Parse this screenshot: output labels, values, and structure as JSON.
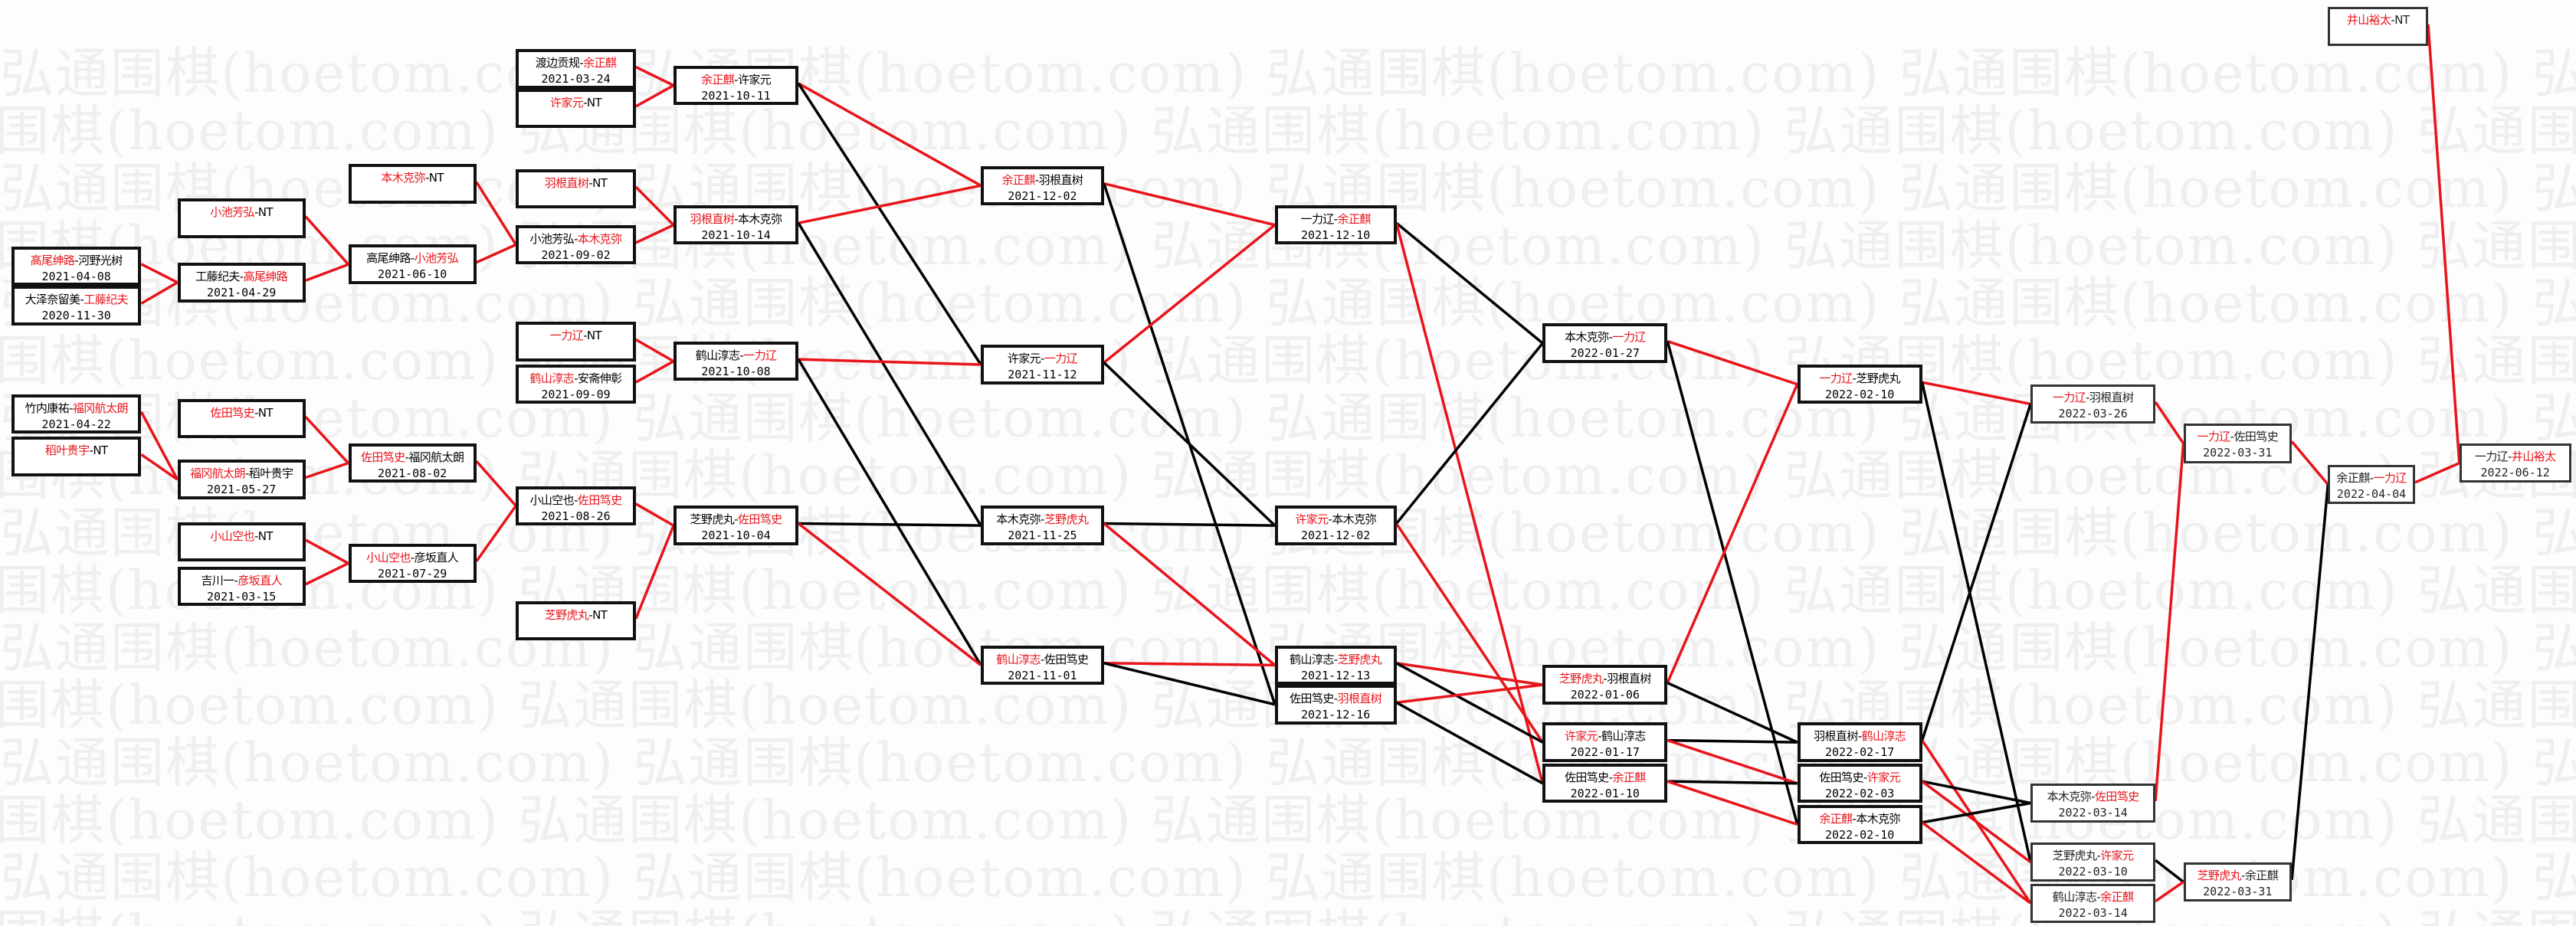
{
  "watermark": "弘通围棋(hoetom.com)",
  "colors": {
    "winner": "#e8141b",
    "loser": "#000000",
    "box_border": "#111111"
  },
  "matches": [
    {
      "id": "A1",
      "p1": "高尾绅路",
      "p2": "河野光树",
      "date": "2021-04-08",
      "winner": 1
    },
    {
      "id": "A2",
      "p1": "大泽奈留美",
      "p2": "工藤纪夫",
      "date": "2020-11-30",
      "winner": 2
    },
    {
      "id": "A3",
      "p1": "竹内康祐",
      "p2": "福冈航太朗",
      "date": "2021-04-22",
      "winner": 2
    },
    {
      "id": "A4",
      "p1": "稻叶贵宇",
      "p2": "NT",
      "date": "",
      "winner": 1
    },
    {
      "id": "B1",
      "p1": "小池芳弘",
      "p2": "NT",
      "date": "",
      "winner": 1
    },
    {
      "id": "B2",
      "p1": "工藤纪夫",
      "p2": "高尾绅路",
      "date": "2021-04-29",
      "winner": 2
    },
    {
      "id": "B3",
      "p1": "佐田笃史",
      "p2": "NT",
      "date": "",
      "winner": 1
    },
    {
      "id": "B4",
      "p1": "福冈航太朗",
      "p2": "稻叶贵宇",
      "date": "2021-05-27",
      "winner": 1
    },
    {
      "id": "B5",
      "p1": "小山空也",
      "p2": "NT",
      "date": "",
      "winner": 1
    },
    {
      "id": "B6",
      "p1": "吉川一",
      "p2": "彦坂直人",
      "date": "2021-03-15",
      "winner": 2
    },
    {
      "id": "C1",
      "p1": "本木克弥",
      "p2": "NT",
      "date": "",
      "winner": 1
    },
    {
      "id": "C2",
      "p1": "高尾绅路",
      "p2": "小池芳弘",
      "date": "2021-06-10",
      "winner": 2
    },
    {
      "id": "C3",
      "p1": "佐田笃史",
      "p2": "福冈航太朗",
      "date": "2021-08-02",
      "winner": 1
    },
    {
      "id": "C4",
      "p1": "小山空也",
      "p2": "彦坂直人",
      "date": "2021-07-29",
      "winner": 1
    },
    {
      "id": "D1",
      "p1": "渡边贡规",
      "p2": "余正麒",
      "date": "2021-03-24",
      "winner": 2
    },
    {
      "id": "D2",
      "p1": "许家元",
      "p2": "NT",
      "date": "",
      "winner": 1
    },
    {
      "id": "D3",
      "p1": "羽根直树",
      "p2": "NT",
      "date": "",
      "winner": 1
    },
    {
      "id": "D4",
      "p1": "小池芳弘",
      "p2": "本木克弥",
      "date": "2021-09-02",
      "winner": 2
    },
    {
      "id": "D5",
      "p1": "一力辽",
      "p2": "NT",
      "date": "",
      "winner": 1
    },
    {
      "id": "D6",
      "p1": "鹤山淳志",
      "p2": "安斋伸彰",
      "date": "2021-09-09",
      "winner": 1
    },
    {
      "id": "D7",
      "p1": "小山空也",
      "p2": "佐田笃史",
      "date": "2021-08-26",
      "winner": 2
    },
    {
      "id": "D8",
      "p1": "芝野虎丸",
      "p2": "NT",
      "date": "",
      "winner": 1
    },
    {
      "id": "E1",
      "p1": "余正麒",
      "p2": "许家元",
      "date": "2021-10-11",
      "winner": 1
    },
    {
      "id": "E2",
      "p1": "羽根直树",
      "p2": "本木克弥",
      "date": "2021-10-14",
      "winner": 1
    },
    {
      "id": "E3",
      "p1": "鹤山淳志",
      "p2": "一力辽",
      "date": "2021-10-08",
      "winner": 2
    },
    {
      "id": "E4",
      "p1": "芝野虎丸",
      "p2": "佐田笃史",
      "date": "2021-10-04",
      "winner": 2
    },
    {
      "id": "F1",
      "p1": "余正麒",
      "p2": "羽根直树",
      "date": "2021-12-02",
      "winner": 1
    },
    {
      "id": "F2",
      "p1": "许家元",
      "p2": "一力辽",
      "date": "2021-11-12",
      "winner": 2
    },
    {
      "id": "F3",
      "p1": "本木克弥",
      "p2": "芝野虎丸",
      "date": "2021-11-25",
      "winner": 2
    },
    {
      "id": "F4",
      "p1": "鹤山淳志",
      "p2": "佐田笃史",
      "date": "2021-11-01",
      "winner": 1
    },
    {
      "id": "G1",
      "p1": "一力辽",
      "p2": "余正麒",
      "date": "2021-12-10",
      "winner": 2
    },
    {
      "id": "G2",
      "p1": "许家元",
      "p2": "本木克弥",
      "date": "2021-12-02",
      "winner": 1
    },
    {
      "id": "G3",
      "p1": "鹤山淳志",
      "p2": "芝野虎丸",
      "date": "2021-12-13",
      "winner": 2
    },
    {
      "id": "G4",
      "p1": "佐田笃史",
      "p2": "羽根直树",
      "date": "2021-12-16",
      "winner": 2
    },
    {
      "id": "H1",
      "p1": "本木克弥",
      "p2": "一力辽",
      "date": "2022-01-27",
      "winner": 2
    },
    {
      "id": "H2",
      "p1": "芝野虎丸",
      "p2": "羽根直树",
      "date": "2022-01-06",
      "winner": 1
    },
    {
      "id": "H3",
      "p1": "许家元",
      "p2": "鹤山淳志",
      "date": "2022-01-17",
      "winner": 1
    },
    {
      "id": "H4",
      "p1": "佐田笃史",
      "p2": "余正麒",
      "date": "2022-01-10",
      "winner": 2
    },
    {
      "id": "I1",
      "p1": "一力辽",
      "p2": "芝野虎丸",
      "date": "2022-02-10",
      "winner": 1
    },
    {
      "id": "I2",
      "p1": "羽根直树",
      "p2": "鹤山淳志",
      "date": "2022-02-17",
      "winner": 2
    },
    {
      "id": "I3",
      "p1": "佐田笃史",
      "p2": "许家元",
      "date": "2022-02-03",
      "winner": 2
    },
    {
      "id": "I4",
      "p1": "余正麒",
      "p2": "本木克弥",
      "date": "2022-02-10",
      "winner": 1
    },
    {
      "id": "J1",
      "p1": "一力辽",
      "p2": "羽根直树",
      "date": "2022-03-26",
      "winner": 1
    },
    {
      "id": "J2",
      "p1": "本木克弥",
      "p2": "佐田笃史",
      "date": "2022-03-14",
      "winner": 2
    },
    {
      "id": "J3",
      "p1": "芝野虎丸",
      "p2": "许家元",
      "date": "2022-03-10",
      "winner": 2
    },
    {
      "id": "J4",
      "p1": "鹤山淳志",
      "p2": "余正麒",
      "date": "2022-03-14",
      "winner": 2
    },
    {
      "id": "K1",
      "p1": "一力辽",
      "p2": "佐田笃史",
      "date": "2022-03-31",
      "winner": 1
    },
    {
      "id": "K2",
      "p1": "芝野虎丸",
      "p2": "余正麒",
      "date": "2022-03-31",
      "winner": 1
    },
    {
      "id": "L1",
      "p1": "余正麒",
      "p2": "一力辽",
      "date": "2022-04-04",
      "winner": 2
    },
    {
      "id": "M0",
      "p1": "井山裕太",
      "p2": "NT",
      "date": "",
      "winner": 1
    },
    {
      "id": "M1",
      "p1": "一力辽",
      "p2": "井山裕太",
      "date": "2022-06-12",
      "winner": 2
    }
  ],
  "connections": [
    [
      "A1",
      "B2",
      "red"
    ],
    [
      "A2",
      "B2",
      "red"
    ],
    [
      "B1",
      "C2",
      "red"
    ],
    [
      "B2",
      "C2",
      "red"
    ],
    [
      "C1",
      "D4",
      "red"
    ],
    [
      "C2",
      "D4",
      "red"
    ],
    [
      "A3",
      "B4",
      "red"
    ],
    [
      "A4",
      "B4",
      "red"
    ],
    [
      "B3",
      "C3",
      "red"
    ],
    [
      "B4",
      "C3",
      "red"
    ],
    [
      "B5",
      "C4",
      "red"
    ],
    [
      "B6",
      "C4",
      "red"
    ],
    [
      "C3",
      "D7",
      "red"
    ],
    [
      "C4",
      "D7",
      "red"
    ],
    [
      "D1",
      "E1",
      "red"
    ],
    [
      "D2",
      "E1",
      "red"
    ],
    [
      "D3",
      "E2",
      "red"
    ],
    [
      "D4",
      "E2",
      "red"
    ],
    [
      "D5",
      "E3",
      "red"
    ],
    [
      "D6",
      "E3",
      "red"
    ],
    [
      "D7",
      "E4",
      "red"
    ],
    [
      "D8",
      "E4",
      "red"
    ],
    [
      "E1",
      "F1",
      "red"
    ],
    [
      "E1",
      "F2",
      "black"
    ],
    [
      "E2",
      "F1",
      "red"
    ],
    [
      "E2",
      "F3",
      "black"
    ],
    [
      "E3",
      "F2",
      "red"
    ],
    [
      "E3",
      "F4",
      "black"
    ],
    [
      "E4",
      "F3",
      "black"
    ],
    [
      "E4",
      "F4",
      "red"
    ],
    [
      "F1",
      "G1",
      "red"
    ],
    [
      "F1",
      "G4",
      "black"
    ],
    [
      "F2",
      "G1",
      "red"
    ],
    [
      "F2",
      "G2",
      "black"
    ],
    [
      "F3",
      "G2",
      "black"
    ],
    [
      "F3",
      "G3",
      "red"
    ],
    [
      "F4",
      "G3",
      "red"
    ],
    [
      "F4",
      "G4",
      "black"
    ],
    [
      "G1",
      "H1",
      "black"
    ],
    [
      "G1",
      "H4",
      "red"
    ],
    [
      "G2",
      "H1",
      "black"
    ],
    [
      "G2",
      "H3",
      "red"
    ],
    [
      "G3",
      "H2",
      "red"
    ],
    [
      "G3",
      "H3",
      "black"
    ],
    [
      "G4",
      "H2",
      "red"
    ],
    [
      "G4",
      "H4",
      "black"
    ],
    [
      "H1",
      "I1",
      "red"
    ],
    [
      "H1",
      "I4",
      "black"
    ],
    [
      "H2",
      "I1",
      "red"
    ],
    [
      "H2",
      "I2",
      "black"
    ],
    [
      "H3",
      "I2",
      "black"
    ],
    [
      "H3",
      "I3",
      "red"
    ],
    [
      "H4",
      "I3",
      "black"
    ],
    [
      "H4",
      "I4",
      "red"
    ],
    [
      "I1",
      "J1",
      "red"
    ],
    [
      "I1",
      "J3",
      "black"
    ],
    [
      "I2",
      "J1",
      "black"
    ],
    [
      "I2",
      "J4",
      "red"
    ],
    [
      "I3",
      "J2",
      "black"
    ],
    [
      "I3",
      "J3",
      "red"
    ],
    [
      "I4",
      "J2",
      "black"
    ],
    [
      "I4",
      "J4",
      "red"
    ],
    [
      "J1",
      "K1",
      "red"
    ],
    [
      "J2",
      "K1",
      "red"
    ],
    [
      "J3",
      "K2",
      "black"
    ],
    [
      "J4",
      "K2",
      "red"
    ],
    [
      "K1",
      "L1",
      "red"
    ],
    [
      "K2",
      "L1",
      "black"
    ],
    [
      "L1",
      "M1",
      "red"
    ],
    [
      "M0",
      "M1",
      "red"
    ]
  ]
}
